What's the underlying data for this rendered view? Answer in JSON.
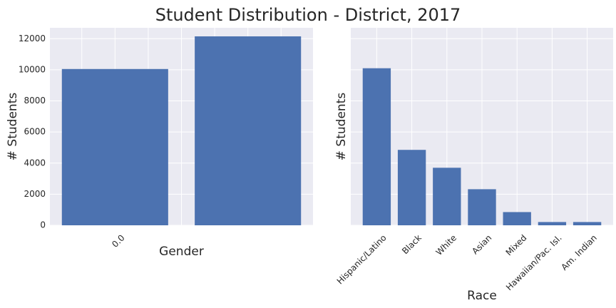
{
  "title": "Student Distribution - District, 2017",
  "chart_data": [
    {
      "type": "bar",
      "categories": [
        "0.0",
        ""
      ],
      "values": [
        10050,
        12150
      ],
      "xlabel": "Gender",
      "ylabel": "# Students",
      "ylim": [
        0,
        12700
      ],
      "yticks": [
        0,
        2000,
        4000,
        6000,
        8000,
        10000,
        12000
      ],
      "grid": true,
      "color": "#4c72b0"
    },
    {
      "type": "bar",
      "categories": [
        "Hispanic/Latino",
        "Black",
        "White",
        "Asian",
        "Mixed",
        "Hawaiian/Pac. Isl.",
        "Am. Indian"
      ],
      "values": [
        10100,
        4850,
        3700,
        2320,
        850,
        210,
        210
      ],
      "xlabel": "Race",
      "ylabel": "# Students",
      "ylim": [
        0,
        12700
      ],
      "yticks": [
        0,
        2000,
        4000,
        6000,
        8000,
        10000,
        12000
      ],
      "grid": true,
      "color": "#4c72b0"
    }
  ]
}
